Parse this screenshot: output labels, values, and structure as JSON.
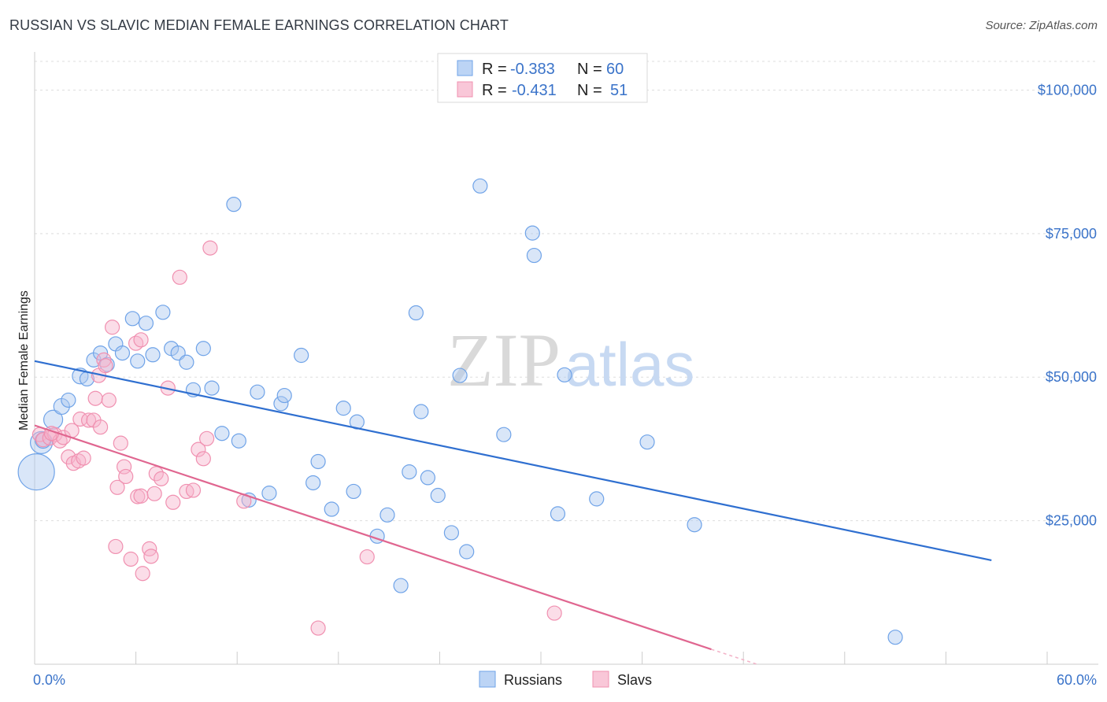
{
  "header": {
    "title": "RUSSIAN VS SLAVIC MEDIAN FEMALE EARNINGS CORRELATION CHART",
    "source": "Source: ZipAtlas.com"
  },
  "watermark": {
    "zip": "ZIP",
    "atlas": "atlas"
  },
  "legend": {
    "r_label": "R =",
    "n_label": "N =",
    "entries": [
      {
        "r": "-0.383",
        "n": "60",
        "color": "#6fa3e8"
      },
      {
        "r": "-0.431",
        "n": "51",
        "color": "#f090b0"
      }
    ]
  },
  "chart_data": {
    "type": "scatter",
    "title": "RUSSIAN VS SLAVIC MEDIAN FEMALE EARNINGS CORRELATION CHART",
    "ylabel": "Median Female Earnings",
    "xlabel": "",
    "xlim": [
      0,
      60
    ],
    "ylim": [
      0,
      105000
    ],
    "x_tick_labels": [
      "0.0%",
      "60.0%"
    ],
    "y_ticks": [
      25000,
      50000,
      75000,
      100000
    ],
    "y_tick_labels": [
      "$25,000",
      "$50,000",
      "$75,000",
      "$100,000"
    ],
    "grid": true,
    "legend_position": "top-center",
    "series": [
      {
        "name": "Russians",
        "color": "#6fa3e8",
        "r": -0.383,
        "n": 60,
        "trend": [
          [
            0,
            52800
          ],
          [
            56.7,
            18100
          ]
        ],
        "points": [
          [
            0.1,
            33500
          ],
          [
            0.4,
            38600
          ],
          [
            0.5,
            39000
          ],
          [
            1.1,
            42600
          ],
          [
            1.6,
            44900
          ],
          [
            2.0,
            46000
          ],
          [
            2.7,
            50200
          ],
          [
            3.1,
            49700
          ],
          [
            3.5,
            53000
          ],
          [
            3.9,
            54200
          ],
          [
            4.3,
            52200
          ],
          [
            4.8,
            55800
          ],
          [
            5.2,
            54200
          ],
          [
            5.8,
            60200
          ],
          [
            6.1,
            52800
          ],
          [
            6.6,
            59400
          ],
          [
            7.0,
            53900
          ],
          [
            7.6,
            61300
          ],
          [
            8.1,
            55000
          ],
          [
            8.5,
            54200
          ],
          [
            9.0,
            52600
          ],
          [
            9.4,
            47800
          ],
          [
            10.0,
            55000
          ],
          [
            10.5,
            48100
          ],
          [
            11.1,
            40200
          ],
          [
            11.8,
            80100
          ],
          [
            12.1,
            38900
          ],
          [
            12.7,
            28600
          ],
          [
            13.2,
            47400
          ],
          [
            13.9,
            29800
          ],
          [
            14.6,
            45400
          ],
          [
            14.8,
            46800
          ],
          [
            15.8,
            53800
          ],
          [
            16.5,
            31600
          ],
          [
            16.8,
            35300
          ],
          [
            17.6,
            27000
          ],
          [
            18.3,
            44600
          ],
          [
            18.9,
            30100
          ],
          [
            19.1,
            42200
          ],
          [
            20.3,
            22300
          ],
          [
            20.9,
            26000
          ],
          [
            21.7,
            13700
          ],
          [
            22.2,
            33500
          ],
          [
            22.6,
            61200
          ],
          [
            22.9,
            44000
          ],
          [
            23.3,
            32500
          ],
          [
            23.9,
            29400
          ],
          [
            24.7,
            22900
          ],
          [
            25.2,
            50300
          ],
          [
            25.6,
            19600
          ],
          [
            26.4,
            83300
          ],
          [
            27.8,
            40000
          ],
          [
            29.5,
            75100
          ],
          [
            29.6,
            71200
          ],
          [
            31.0,
            26200
          ],
          [
            31.4,
            50400
          ],
          [
            33.3,
            28800
          ],
          [
            36.3,
            38700
          ],
          [
            39.1,
            24300
          ],
          [
            51.0,
            4700
          ]
        ],
        "sizes": [
          48,
          30,
          22,
          26,
          22,
          20,
          22,
          20,
          20,
          20,
          20,
          20,
          20,
          20,
          20,
          20,
          20,
          20,
          20,
          20,
          20,
          20,
          20,
          20,
          20,
          20,
          20,
          20,
          20,
          20,
          20,
          20,
          20,
          20,
          20,
          20,
          20,
          20,
          20,
          20,
          20,
          20,
          20,
          20,
          20,
          20,
          20,
          20,
          20,
          20,
          20,
          20,
          20,
          20,
          20,
          20,
          20,
          20,
          20,
          20
        ]
      },
      {
        "name": "Slavs",
        "color": "#f090b0",
        "r": -0.431,
        "n": 51,
        "trend": [
          [
            0,
            41600
          ],
          [
            40.1,
            2600
          ]
        ],
        "trend_dashed": [
          [
            40.1,
            2600
          ],
          [
            42.8,
            0
          ]
        ],
        "points": [
          [
            0.3,
            40000
          ],
          [
            0.5,
            39100
          ],
          [
            0.9,
            39400
          ],
          [
            1.2,
            40000
          ],
          [
            1.5,
            38900
          ],
          [
            1.7,
            39500
          ],
          [
            2.0,
            36100
          ],
          [
            2.2,
            40700
          ],
          [
            2.3,
            35000
          ],
          [
            2.6,
            35400
          ],
          [
            2.7,
            42700
          ],
          [
            2.9,
            35900
          ],
          [
            3.2,
            42500
          ],
          [
            3.5,
            42500
          ],
          [
            3.6,
            46300
          ],
          [
            3.8,
            50300
          ],
          [
            3.9,
            41300
          ],
          [
            4.1,
            53000
          ],
          [
            4.2,
            52000
          ],
          [
            4.4,
            46000
          ],
          [
            4.6,
            58700
          ],
          [
            4.8,
            20500
          ],
          [
            4.9,
            30800
          ],
          [
            5.1,
            38500
          ],
          [
            5.3,
            34400
          ],
          [
            5.4,
            32700
          ],
          [
            5.7,
            18300
          ],
          [
            6.0,
            55900
          ],
          [
            6.1,
            29200
          ],
          [
            6.3,
            29300
          ],
          [
            6.4,
            15800
          ],
          [
            6.8,
            20100
          ],
          [
            6.9,
            18800
          ],
          [
            7.1,
            29700
          ],
          [
            7.2,
            33200
          ],
          [
            7.5,
            32300
          ],
          [
            7.9,
            48100
          ],
          [
            8.2,
            28200
          ],
          [
            8.6,
            67400
          ],
          [
            9.0,
            30100
          ],
          [
            9.4,
            30300
          ],
          [
            9.7,
            37400
          ],
          [
            10.0,
            35800
          ],
          [
            10.2,
            39300
          ],
          [
            10.4,
            72500
          ],
          [
            12.4,
            28400
          ],
          [
            16.8,
            6300
          ],
          [
            19.7,
            18700
          ],
          [
            30.8,
            8900
          ],
          [
            6.3,
            56500
          ],
          [
            1.0,
            40200
          ]
        ],
        "sizes": [
          20,
          20,
          20,
          20,
          20,
          20,
          20,
          20,
          20,
          20,
          20,
          20,
          20,
          20,
          20,
          20,
          20,
          20,
          20,
          20,
          20,
          20,
          20,
          20,
          20,
          20,
          20,
          20,
          20,
          20,
          20,
          20,
          20,
          20,
          20,
          20,
          20,
          20,
          20,
          20,
          20,
          20,
          20,
          20,
          20,
          20,
          20,
          20,
          20,
          20,
          20
        ]
      }
    ]
  }
}
